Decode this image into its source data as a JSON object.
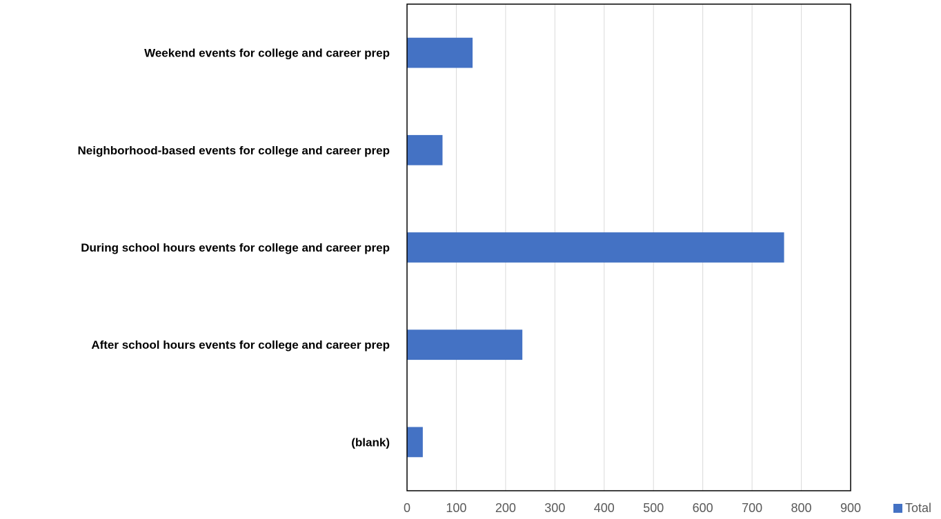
{
  "chart_data": {
    "type": "bar",
    "orientation": "horizontal",
    "title": "",
    "xlabel": "",
    "ylabel": "",
    "categories": [
      "Weekend events for college and career prep",
      "Neighborhood-based events for college and career prep",
      "During school hours events for college and career prep",
      "After school hours events for college and career prep",
      "(blank)"
    ],
    "series": [
      {
        "name": "Total",
        "color": "#4472C4",
        "values": [
          133,
          72,
          765,
          234,
          32
        ]
      }
    ],
    "xlim": [
      0,
      900
    ],
    "xticks": [
      0,
      100,
      200,
      300,
      400,
      500,
      600,
      700,
      800,
      900
    ],
    "grid": "vertical",
    "legend": "right"
  }
}
